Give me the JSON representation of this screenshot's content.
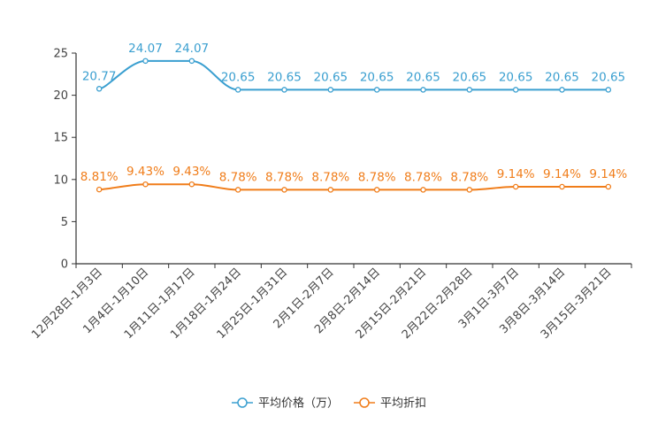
{
  "chart_data": {
    "type": "line",
    "title": "",
    "xlabel": "",
    "ylabel": "",
    "ylim": [
      0,
      25
    ],
    "yticks": [
      0,
      5,
      10,
      15,
      20,
      25
    ],
    "grid": false,
    "legend_position": "bottom-center",
    "categories": [
      "12月28日-1月3日",
      "1月4日-1月10日",
      "1月11日-1月17日",
      "1月18日-1月24日",
      "1月25日-1月31日",
      "2月1日-2月7日",
      "2月8日-2月14日",
      "2月15日-2月21日",
      "2月22日-2月28日",
      "3月1日-3月7日",
      "3月8日-3月14日",
      "3月15日-3月21日"
    ],
    "series": [
      {
        "name": "平均价格（万）",
        "color": "#3a9fd0",
        "values": [
          20.77,
          24.07,
          24.07,
          20.65,
          20.65,
          20.65,
          20.65,
          20.65,
          20.65,
          20.65,
          20.65,
          20.65
        ],
        "labels": [
          "20.77",
          "24.07",
          "24.07",
          "20.65",
          "20.65",
          "20.65",
          "20.65",
          "20.65",
          "20.65",
          "20.65",
          "20.65",
          "20.65"
        ]
      },
      {
        "name": "平均折扣",
        "color": "#f07d1a",
        "values": [
          8.81,
          9.43,
          9.43,
          8.78,
          8.78,
          8.78,
          8.78,
          8.78,
          8.78,
          9.14,
          9.14,
          9.14
        ],
        "labels": [
          "8.81%",
          "9.43%",
          "9.43%",
          "8.78%",
          "8.78%",
          "8.78%",
          "8.78%",
          "8.78%",
          "8.78%",
          "9.14%",
          "9.14%",
          "9.14%"
        ]
      }
    ]
  }
}
